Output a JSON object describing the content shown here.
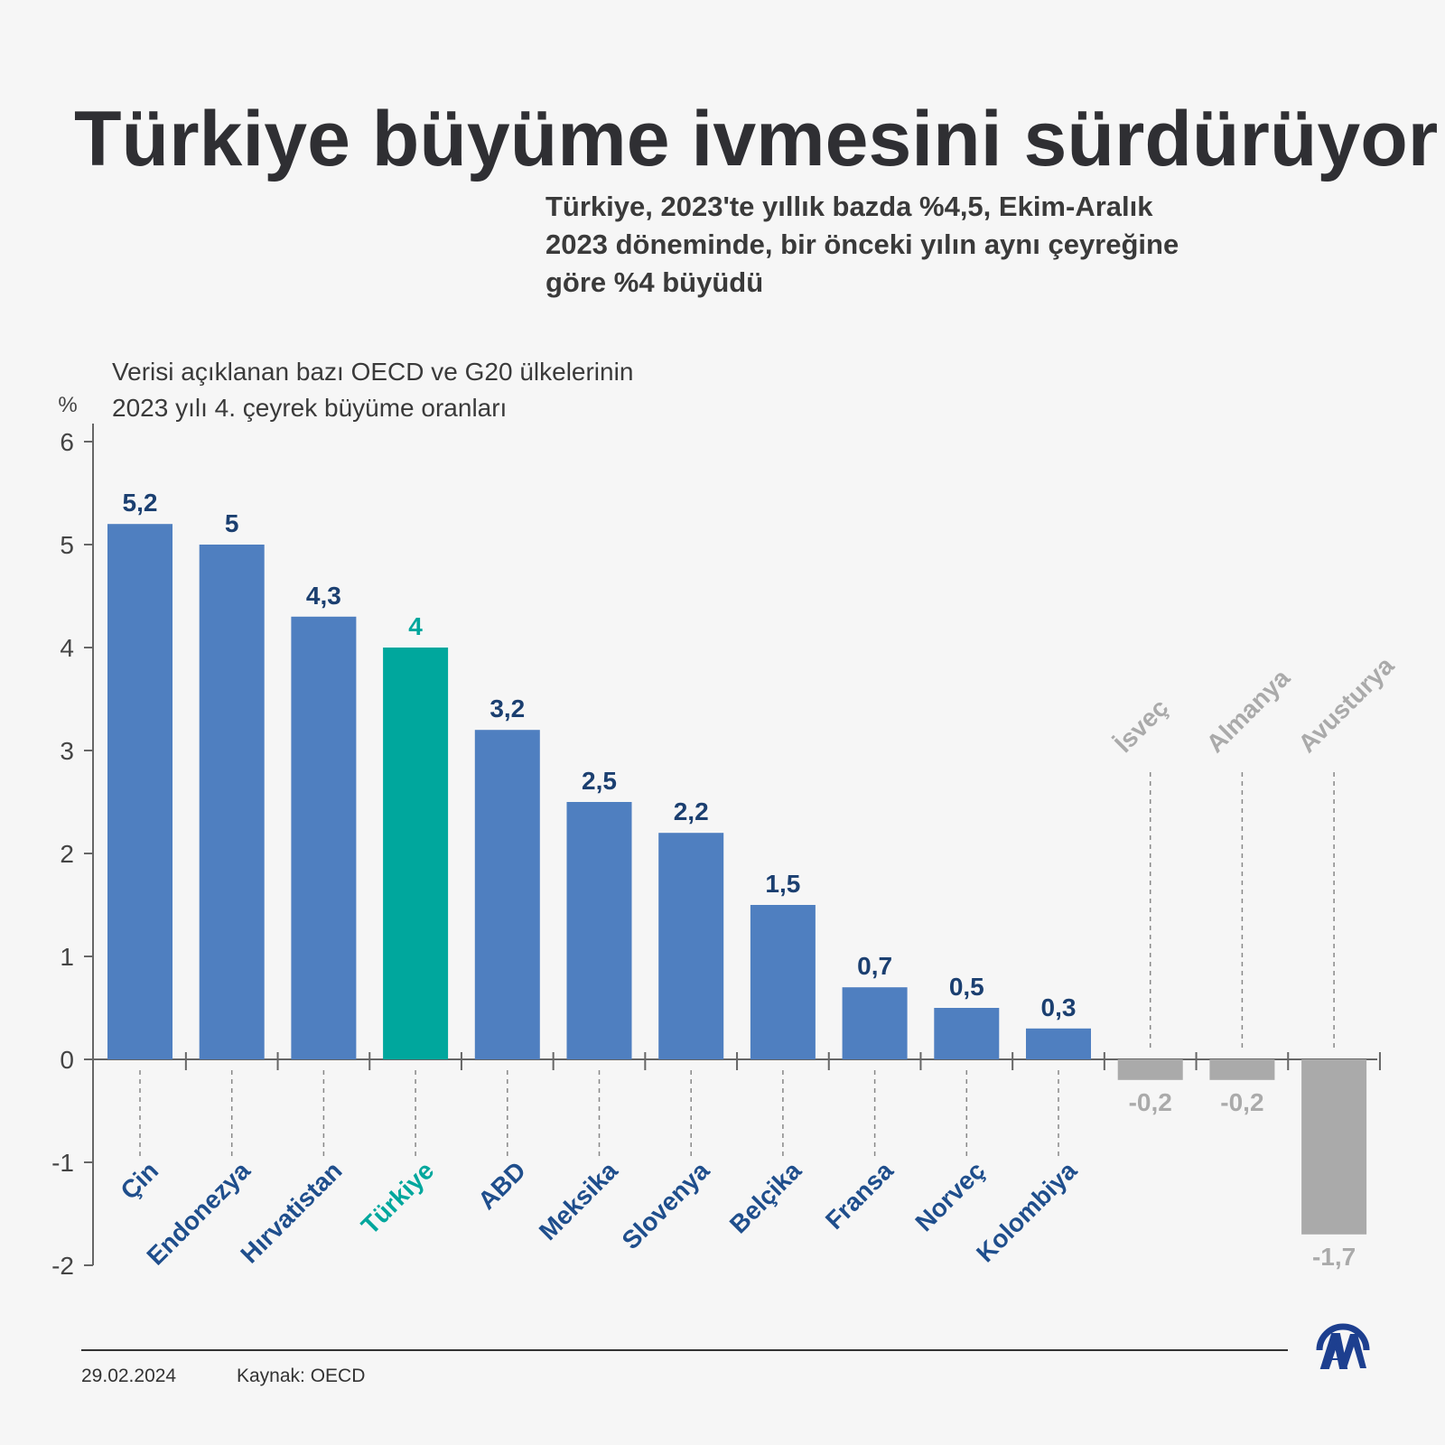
{
  "title": "Türkiye büyüme ivmesini sürdürüyor",
  "subtitle": "Türkiye, 2023'te yıllık bazda %4,5, Ekim-Aralık 2023 döneminde, bir önceki yılın aynı çeyreğine göre %4 büyüdü",
  "footer": {
    "date": "29.02.2024",
    "source": "Kaynak: OECD",
    "logo_text": "AA"
  },
  "colors": {
    "bar": "#4f7fc0",
    "highlight": "#00a79d",
    "negative": "#aaaaaa",
    "value_label": "#1b3f70",
    "country_label": "#1f4e8c"
  },
  "chart_data": {
    "type": "bar",
    "title": "Verisi açıklanan bazı OECD ve G20 ülkelerinin 2023 yılı 4. çeyrek büyüme oranları",
    "title_lines": [
      "Verisi açıklanan bazı OECD ve G20 ülkelerinin",
      "2023 yılı 4. çeyrek büyüme oranları"
    ],
    "ylabel": "%",
    "xlabel": "",
    "ylim": [
      -2,
      6
    ],
    "yticks": [
      "-2",
      "-1",
      "0",
      "1",
      "2",
      "3",
      "4",
      "5",
      "6"
    ],
    "categories": [
      "Çin",
      "Endonezya",
      "Hırvatistan",
      "Türkiye",
      "ABD",
      "Meksika",
      "Slovenya",
      "Belçika",
      "Fransa",
      "Norveç",
      "Kolombiya",
      "İsveç",
      "Almanya",
      "Avusturya"
    ],
    "values": [
      5.2,
      5,
      4.3,
      4,
      3.2,
      2.5,
      2.2,
      1.5,
      0.7,
      0.5,
      0.3,
      -0.2,
      -0.2,
      -1.7
    ],
    "value_labels": [
      "5,2",
      "5",
      "4,3",
      "4",
      "3,2",
      "2,5",
      "2,2",
      "1,5",
      "0,7",
      "0,5",
      "0,3",
      "-0,2",
      "-0,2",
      "-1,7"
    ],
    "highlight": "Türkiye",
    "grid": false
  }
}
